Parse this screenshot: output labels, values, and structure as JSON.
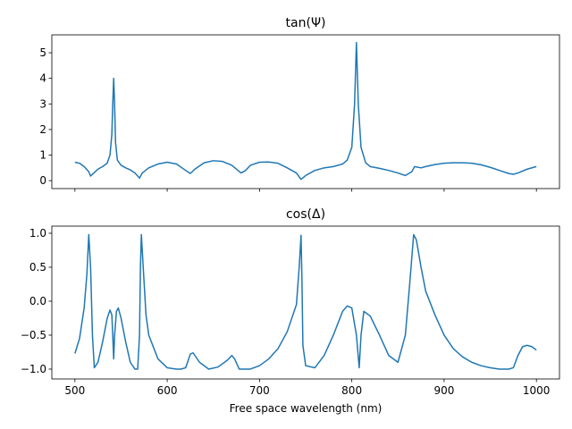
{
  "chart_data": [
    {
      "type": "line",
      "title": "tan(Ψ)",
      "x": [
        500,
        505,
        510,
        515,
        517,
        520,
        525,
        530,
        535,
        538,
        540,
        541,
        542,
        543,
        544,
        546,
        550,
        555,
        560,
        565,
        570,
        573,
        580,
        590,
        600,
        610,
        620,
        625,
        630,
        640,
        650,
        660,
        670,
        680,
        685,
        690,
        700,
        710,
        720,
        730,
        740,
        745,
        750,
        760,
        770,
        780,
        790,
        795,
        800,
        803,
        805,
        807,
        810,
        815,
        820,
        830,
        840,
        850,
        858,
        865,
        868,
        875,
        880,
        890,
        900,
        910,
        920,
        930,
        940,
        950,
        960,
        970,
        975,
        980,
        990,
        1000
      ],
      "series": [
        {
          "name": "tan(Ψ)",
          "color": "#1f77b4",
          "values": [
            0.72,
            0.68,
            0.55,
            0.35,
            0.18,
            0.28,
            0.45,
            0.55,
            0.68,
            1.0,
            1.8,
            3.0,
            4.0,
            3.0,
            1.5,
            0.8,
            0.6,
            0.5,
            0.42,
            0.3,
            0.1,
            0.3,
            0.5,
            0.65,
            0.72,
            0.65,
            0.4,
            0.28,
            0.45,
            0.7,
            0.78,
            0.75,
            0.6,
            0.3,
            0.4,
            0.6,
            0.72,
            0.73,
            0.68,
            0.5,
            0.3,
            0.05,
            0.2,
            0.4,
            0.5,
            0.55,
            0.65,
            0.8,
            1.3,
            3.0,
            5.4,
            3.0,
            1.3,
            0.7,
            0.55,
            0.48,
            0.4,
            0.3,
            0.2,
            0.35,
            0.55,
            0.5,
            0.55,
            0.63,
            0.68,
            0.7,
            0.7,
            0.68,
            0.62,
            0.52,
            0.4,
            0.28,
            0.25,
            0.3,
            0.45,
            0.55
          ]
        }
      ],
      "xlim": [
        475,
        1025
      ],
      "xticks": [
        500,
        600,
        700,
        800,
        900,
        1000
      ],
      "ylim": [
        -0.31,
        5.7
      ],
      "yticks": [
        0,
        1,
        2,
        3,
        4,
        5
      ]
    },
    {
      "type": "line",
      "title": "cos(Δ)",
      "x_label": "Free space wavelength (nm)",
      "x": [
        500,
        505,
        510,
        513,
        515,
        517,
        519,
        521,
        525,
        530,
        535,
        538,
        540,
        541,
        542,
        543,
        545,
        547,
        550,
        555,
        560,
        565,
        568,
        570,
        571,
        572,
        574,
        577,
        580,
        590,
        600,
        610,
        615,
        620,
        625,
        628,
        635,
        645,
        655,
        665,
        670,
        673,
        678,
        690,
        700,
        710,
        720,
        730,
        740,
        743,
        745,
        746,
        747,
        750,
        760,
        770,
        780,
        790,
        795,
        800,
        805,
        808,
        810,
        813,
        820,
        830,
        840,
        850,
        858,
        863,
        867,
        870,
        875,
        880,
        890,
        900,
        910,
        920,
        930,
        940,
        950,
        960,
        970,
        975,
        980,
        985,
        990,
        995,
        1000
      ],
      "series": [
        {
          "name": "cos(Δ)",
          "color": "#1f77b4",
          "values": [
            -0.77,
            -0.55,
            -0.1,
            0.4,
            0.98,
            0.5,
            -0.5,
            -0.98,
            -0.9,
            -0.6,
            -0.25,
            -0.13,
            -0.2,
            -0.5,
            -0.85,
            -0.5,
            -0.15,
            -0.1,
            -0.25,
            -0.6,
            -0.9,
            -1.0,
            -1.0,
            -0.5,
            0.5,
            0.98,
            0.5,
            -0.2,
            -0.5,
            -0.85,
            -0.98,
            -1.0,
            -1.0,
            -0.98,
            -0.78,
            -0.76,
            -0.9,
            -1.0,
            -0.97,
            -0.87,
            -0.8,
            -0.85,
            -1.0,
            -1.0,
            -0.95,
            -0.85,
            -0.7,
            -0.45,
            -0.05,
            0.5,
            0.97,
            0.3,
            -0.65,
            -0.95,
            -0.98,
            -0.8,
            -0.5,
            -0.15,
            -0.07,
            -0.1,
            -0.5,
            -0.98,
            -0.5,
            -0.15,
            -0.22,
            -0.5,
            -0.8,
            -0.9,
            -0.5,
            0.3,
            0.98,
            0.9,
            0.5,
            0.15,
            -0.2,
            -0.5,
            -0.7,
            -0.82,
            -0.9,
            -0.95,
            -0.98,
            -1.0,
            -1.0,
            -0.98,
            -0.8,
            -0.67,
            -0.65,
            -0.67,
            -0.72
          ]
        }
      ],
      "xlim": [
        475,
        1025
      ],
      "xticks": [
        500,
        600,
        700,
        800,
        900,
        1000
      ],
      "show_xtick_labels": true,
      "ylim": [
        -1.145,
        1.105
      ],
      "yticks": [
        {
          "value": -1.0,
          "label": "−1.0"
        },
        {
          "value": -0.5,
          "label": "−0.5"
        },
        {
          "value": 0.0,
          "label": "0.0"
        },
        {
          "value": 0.5,
          "label": "0.5"
        },
        {
          "value": 1.0,
          "label": "1.0"
        }
      ]
    }
  ]
}
